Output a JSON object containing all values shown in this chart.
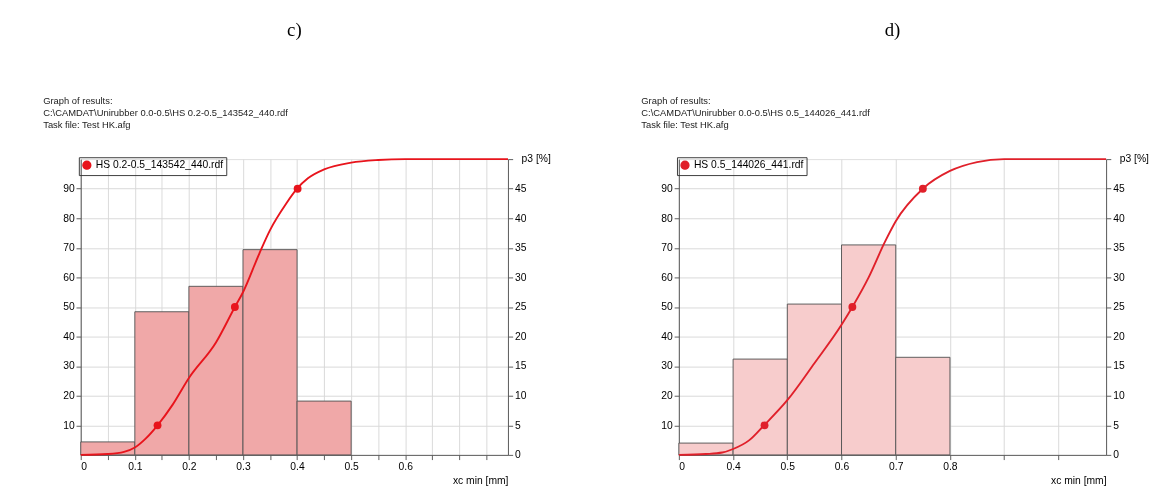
{
  "chart_data": [
    {
      "type": "histogram",
      "title": "c)",
      "annotations": [
        "Graph of results:",
        "C:\\CAMDAT\\Unirubber 0.0-0.5\\HS 0.2-0.5_143542_440.rdf",
        "Task file:  Test HK.afg"
      ],
      "xlabel": "xc  min [mm]",
      "y2label": "p3 [%]",
      "xlim": [
        0,
        0.79
      ],
      "xticks": [
        0,
        {
          "value": 0.05,
          "label": null
        },
        0.1,
        {
          "value": 0.15,
          "label": null
        },
        0.2,
        {
          "value": 0.25,
          "label": null
        },
        0.3,
        {
          "value": 0.35,
          "label": null
        },
        0.4,
        {
          "value": 0.45,
          "label": null
        },
        0.5,
        {
          "value": 0.55,
          "label": null
        },
        0.6,
        {
          "value": 0.65,
          "label": null
        },
        {
          "value": 0.7,
          "label": null
        },
        {
          "value": 0.75,
          "label": null
        }
      ],
      "ylim": [
        0,
        100
      ],
      "yticks": [
        10,
        20,
        30,
        40,
        50,
        60,
        70,
        80,
        90
      ],
      "y2lim": [
        0,
        50
      ],
      "y2ticks": [
        0,
        5,
        10,
        15,
        20,
        25,
        30,
        35,
        40,
        45,
        {
          "value": 50,
          "label": null
        }
      ],
      "grid": true,
      "legend": "top left",
      "series": [
        {
          "axis": "y2",
          "color": "#f0a8a8",
          "bins": [
            0,
            0.1,
            0.2,
            0.3,
            0.4,
            0.5
          ],
          "values": [
            2.2,
            24.2,
            28.5,
            34.7,
            9.1
          ]
        },
        {
          "type": "line",
          "name": "HS 0.2-0.5_143542_440.rdf",
          "color": "#e8141c",
          "x": [
            0,
            0.05,
            0.08,
            0.1,
            0.12,
            0.142,
            0.17,
            0.2,
            0.25,
            0.285,
            0.3,
            0.33,
            0.35,
            0.38,
            0.4,
            0.42,
            0.45,
            0.5,
            0.55,
            0.6,
            0.79
          ],
          "values": [
            0,
            0.3,
            1,
            2.5,
            5.5,
            10,
            17,
            26,
            38,
            50,
            55,
            68,
            76,
            85,
            90,
            93.5,
            96.5,
            98.8,
            99.7,
            100,
            100
          ]
        },
        {
          "type": "scatter",
          "color": "#e8141c",
          "marker": "circle",
          "x": [
            0.142,
            0.285,
            0.401
          ],
          "values": [
            10,
            50,
            90
          ]
        }
      ]
    },
    {
      "type": "histogram",
      "title": "d)",
      "annotations": [
        "Graph of results:",
        "C:\\CAMDAT\\Unirubber 0.0-0.5\\HS 0.5_144026_441.rdf",
        "Task file: Test HK.afg"
      ],
      "xlabel": "xc  min [mm]",
      "y2label": "p3 [%]",
      "xlim": [
        0.3,
        1.088
      ],
      "xticks": [
        {
          "value": 0.3,
          "label": "0"
        },
        0.4,
        0.5,
        0.6,
        0.7,
        0.8,
        {
          "value": 0.9,
          "label": null
        },
        {
          "value": 1.0,
          "label": null
        }
      ],
      "ylim": [
        0,
        100
      ],
      "yticks": [
        10,
        20,
        30,
        40,
        50,
        60,
        70,
        80,
        90
      ],
      "y2lim": [
        0,
        50
      ],
      "y2ticks": [
        0,
        5,
        10,
        15,
        20,
        25,
        30,
        35,
        40,
        45,
        {
          "value": 50,
          "label": null
        }
      ],
      "grid": true,
      "legend": "top left",
      "series": [
        {
          "axis": "y2",
          "color": "#f7cccc",
          "bins": [
            0.3,
            0.4,
            0.5,
            0.6,
            0.7,
            0.8
          ],
          "values": [
            2,
            16.2,
            25.5,
            35.5,
            16.5
          ]
        },
        {
          "type": "line",
          "name": "HS 0.5_144026_441.rdf",
          "color": "#e0202a",
          "x": [
            0.3,
            0.35,
            0.38,
            0.4,
            0.43,
            0.457,
            0.5,
            0.55,
            0.6,
            0.62,
            0.65,
            0.68,
            0.7,
            0.75,
            0.8,
            0.85,
            0.9,
            1.088
          ],
          "values": [
            0,
            0.3,
            0.8,
            2,
            5,
            10,
            18.5,
            31,
            44,
            50,
            60,
            72,
            79,
            90,
            96,
            99,
            100,
            100
          ]
        },
        {
          "type": "scatter",
          "color": "#e0202a",
          "marker": "circle",
          "x": [
            0.458,
            0.62,
            0.75
          ],
          "values": [
            10,
            50,
            90
          ]
        }
      ]
    }
  ]
}
